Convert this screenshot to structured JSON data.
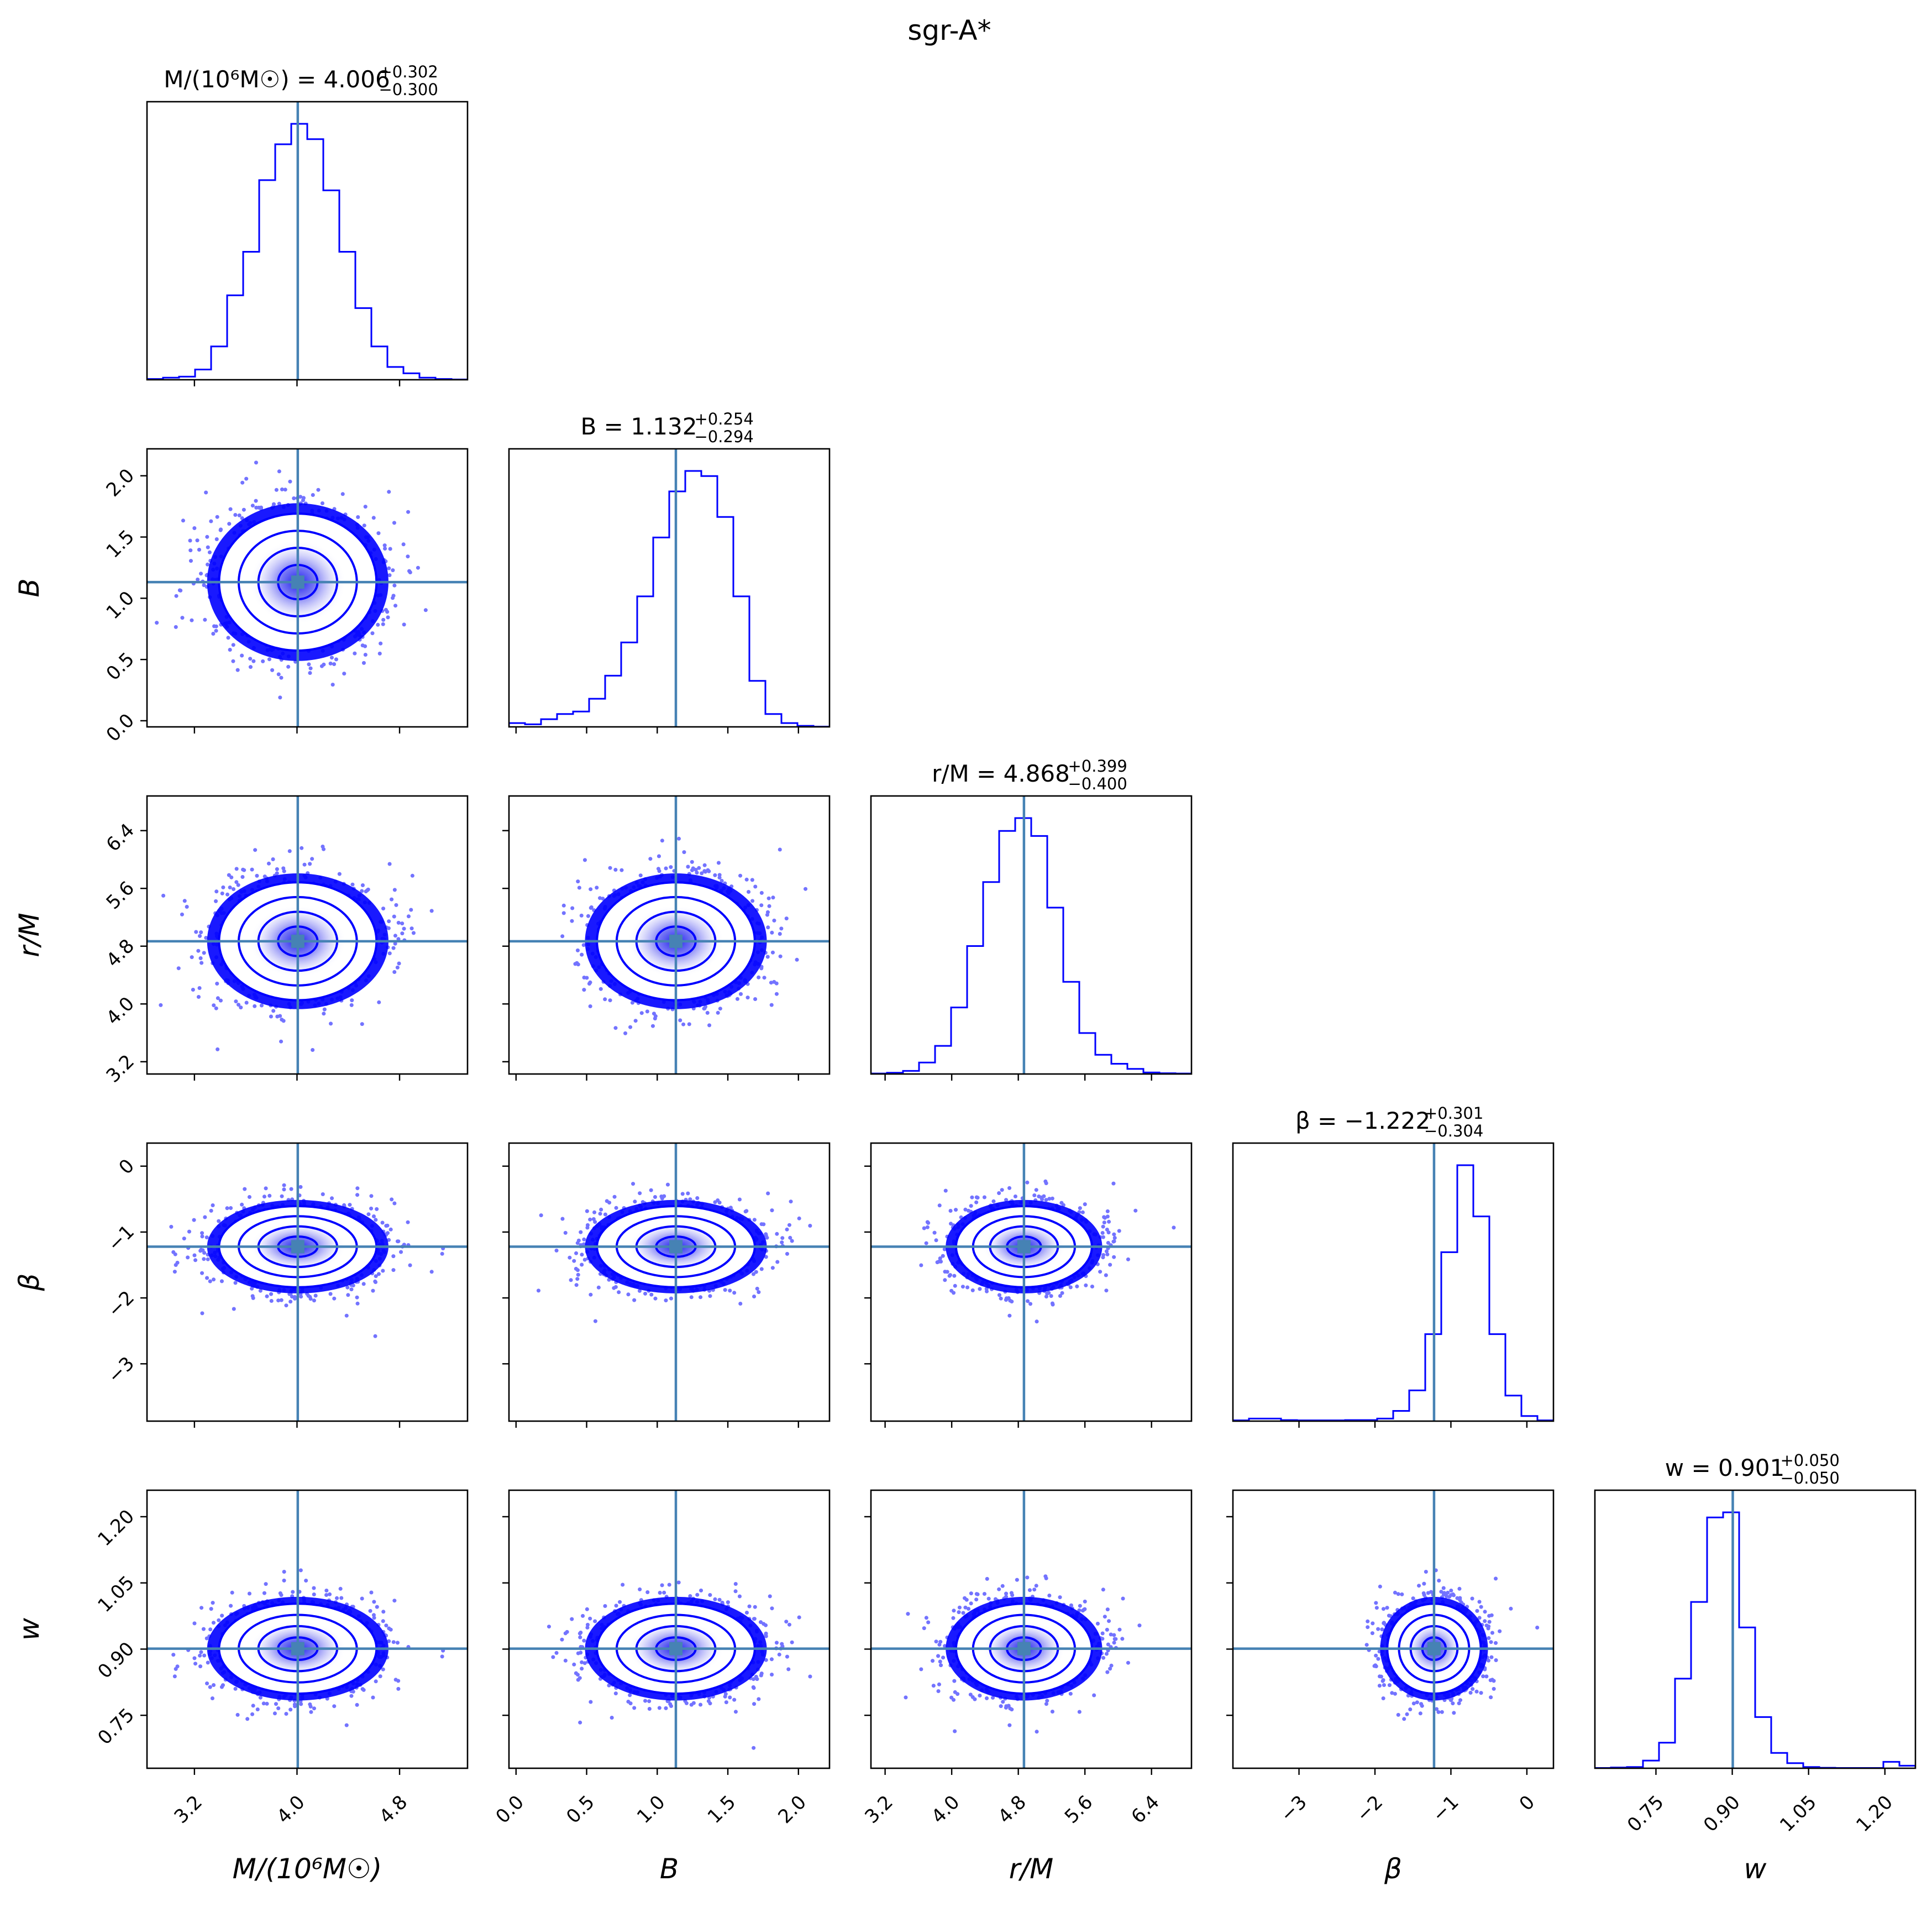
{
  "figure": {
    "title": "sgr-A*"
  },
  "colors": {
    "samples": "#0000ff",
    "truth": "#4682b4",
    "axes": "#000000"
  },
  "chart_data": {
    "type": "scatter",
    "kind": "corner-plot",
    "parameters": [
      {
        "key": "M",
        "axis_label": "M/(10⁶M☉)",
        "title_main": "M/(10⁶M☉) = 4.006",
        "err_plus": "+0.302",
        "err_minus": "−0.300",
        "median": 4.006,
        "sigma": 0.301,
        "range": [
          2.83,
          5.33
        ],
        "ticks": [
          3.2,
          4.0,
          4.8
        ],
        "tick_labels": [
          "3.2",
          "4.0",
          "4.8"
        ]
      },
      {
        "key": "B",
        "axis_label": "B",
        "title_main": "B = 1.132",
        "err_plus": "+0.254",
        "err_minus": "−0.294",
        "median": 1.132,
        "sigma": 0.274,
        "range": [
          -0.05,
          2.22
        ],
        "ticks": [
          0.0,
          0.5,
          1.0,
          1.5,
          2.0
        ],
        "tick_labels": [
          "0.0",
          "0.5",
          "1.0",
          "1.5",
          "2.0"
        ]
      },
      {
        "key": "r",
        "axis_label": "r/M",
        "title_main": "r/M = 4.868",
        "err_plus": "+0.399",
        "err_minus": "−0.400",
        "median": 4.868,
        "sigma": 0.4,
        "range": [
          3.03,
          6.88
        ],
        "ticks": [
          3.2,
          4.0,
          4.8,
          5.6,
          6.4
        ],
        "tick_labels": [
          "3.2",
          "4.0",
          "4.8",
          "5.6",
          "6.4"
        ]
      },
      {
        "key": "beta",
        "axis_label": "β",
        "title_main": "β = −1.222",
        "err_plus": "+0.301",
        "err_minus": "−0.304",
        "median": -1.222,
        "sigma": 0.302,
        "range": [
          -3.87,
          0.35
        ],
        "ticks": [
          -3,
          -2,
          -1,
          0
        ],
        "tick_labels": [
          "−3",
          "−2",
          "−1",
          "0"
        ]
      },
      {
        "key": "w",
        "axis_label": "w",
        "title_main": "w = 0.901",
        "err_plus": "+0.050",
        "err_minus": "−0.050",
        "median": 0.901,
        "sigma": 0.05,
        "range": [
          0.63,
          1.26
        ],
        "ticks": [
          0.75,
          0.9,
          1.05,
          1.2
        ],
        "tick_labels": [
          "0.75",
          "0.90",
          "1.05",
          "1.20"
        ]
      }
    ],
    "histograms": {
      "M": [
        0.003,
        0.008,
        0.012,
        0.04,
        0.13,
        0.33,
        0.5,
        0.78,
        0.92,
        1.0,
        0.94,
        0.74,
        0.5,
        0.28,
        0.13,
        0.05,
        0.025,
        0.008,
        0.003,
        0.001
      ],
      "B": [
        0.015,
        0.01,
        0.03,
        0.05,
        0.06,
        0.11,
        0.2,
        0.33,
        0.51,
        0.74,
        0.92,
        1.0,
        0.98,
        0.82,
        0.51,
        0.18,
        0.05,
        0.015,
        0.004,
        0.001
      ],
      "r": [
        0.002,
        0.005,
        0.012,
        0.045,
        0.11,
        0.26,
        0.5,
        0.75,
        0.95,
        1.0,
        0.93,
        0.65,
        0.36,
        0.16,
        0.075,
        0.04,
        0.02,
        0.006,
        0.003,
        0.002
      ],
      "beta": [
        0.003,
        0.01,
        0.01,
        0.004,
        0.003,
        0.003,
        0.003,
        0.004,
        0.004,
        0.01,
        0.04,
        0.12,
        0.34,
        0.66,
        1.0,
        0.8,
        0.34,
        0.1,
        0.02,
        0.003
      ],
      "w": [
        0.001,
        0.003,
        0.005,
        0.03,
        0.1,
        0.35,
        0.65,
        0.98,
        1.0,
        0.55,
        0.2,
        0.06,
        0.02,
        0.005,
        0.002,
        0.001,
        0.001,
        0.001,
        0.025,
        0.01
      ]
    }
  }
}
